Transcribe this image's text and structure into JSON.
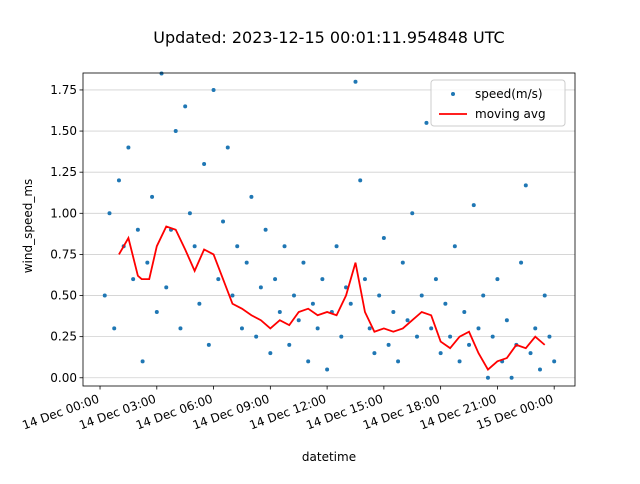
{
  "chart_data": {
    "type": "scatter",
    "title": "Updated: 2023-12-15 00:01:11.954848 UTC",
    "xlabel": "datetime",
    "ylabel": "wind_speed_ms",
    "xlim": [
      -0.9,
      25.1
    ],
    "ylim": [
      -0.05,
      1.853
    ],
    "xticks": [
      {
        "value": 0,
        "label": "14 Dec 00:00"
      },
      {
        "value": 3,
        "label": "14 Dec 03:00"
      },
      {
        "value": 6,
        "label": "14 Dec 06:00"
      },
      {
        "value": 9,
        "label": "14 Dec 09:00"
      },
      {
        "value": 12,
        "label": "14 Dec 12:00"
      },
      {
        "value": 15,
        "label": "14 Dec 15:00"
      },
      {
        "value": 18,
        "label": "14 Dec 18:00"
      },
      {
        "value": 21,
        "label": "14 Dec 21:00"
      },
      {
        "value": 24,
        "label": "15 Dec 00:00"
      }
    ],
    "yticks": [
      {
        "value": 0,
        "label": "0.00"
      },
      {
        "value": 0.25,
        "label": "0.25"
      },
      {
        "value": 0.5,
        "label": "0.50"
      },
      {
        "value": 0.75,
        "label": "0.75"
      },
      {
        "value": 1,
        "label": "1.00"
      },
      {
        "value": 1.25,
        "label": "1.25"
      },
      {
        "value": 1.5,
        "label": "1.50"
      },
      {
        "value": 1.75,
        "label": "1.75"
      }
    ],
    "grid": "y",
    "legend": "upper right",
    "series": [
      {
        "name": "speed(m/s)",
        "type": "scatter",
        "color": "#1f77b4",
        "x": [
          0.25,
          0.5,
          0.75,
          1,
          1.25,
          1.5,
          1.75,
          2,
          2.25,
          2.5,
          2.75,
          3,
          3.25,
          3.5,
          3.75,
          4,
          4.25,
          4.5,
          4.75,
          5,
          5.25,
          5.5,
          5.75,
          6,
          6.25,
          6.5,
          6.75,
          7,
          7.25,
          7.5,
          7.75,
          8,
          8.25,
          8.5,
          8.75,
          9,
          9.25,
          9.5,
          9.75,
          10,
          10.25,
          10.5,
          10.75,
          11,
          11.25,
          11.5,
          11.75,
          12,
          12.25,
          12.5,
          12.75,
          13,
          13.25,
          13.5,
          13.75,
          14,
          14.25,
          14.5,
          14.75,
          15,
          15.25,
          15.5,
          15.75,
          16,
          16.25,
          16.5,
          16.75,
          17,
          17.25,
          17.5,
          17.75,
          18,
          18.25,
          18.5,
          18.75,
          19,
          19.25,
          19.5,
          19.75,
          20,
          20.25,
          20.5,
          20.75,
          21,
          21.25,
          21.5,
          21.75,
          22,
          22.25,
          22.5,
          22.75,
          23,
          23.25,
          23.5,
          23.75,
          24
        ],
        "values": [
          0.5,
          1.0,
          0.3,
          1.2,
          0.8,
          1.4,
          0.6,
          0.9,
          0.1,
          0.7,
          1.1,
          0.4,
          1.85,
          0.55,
          0.9,
          1.5,
          0.3,
          1.65,
          1.0,
          0.8,
          0.45,
          1.3,
          0.2,
          1.75,
          0.6,
          0.95,
          1.4,
          0.5,
          0.8,
          0.3,
          0.7,
          1.1,
          0.25,
          0.55,
          0.9,
          0.15,
          0.6,
          0.4,
          0.8,
          0.2,
          0.5,
          0.35,
          0.7,
          0.1,
          0.45,
          0.3,
          0.6,
          0.05,
          0.4,
          0.8,
          0.25,
          0.55,
          0.45,
          1.8,
          1.2,
          0.6,
          0.3,
          0.15,
          0.5,
          0.85,
          0.2,
          0.4,
          0.1,
          0.7,
          0.35,
          1.0,
          0.25,
          0.5,
          1.55,
          0.3,
          0.6,
          0.15,
          0.45,
          0.25,
          0.8,
          0.1,
          0.4,
          0.2,
          1.05,
          0.3,
          0.5,
          0.0,
          0.25,
          0.6,
          0.1,
          0.35,
          0.0,
          0.2,
          0.7,
          1.17,
          0.15,
          0.3,
          0.05,
          0.5,
          0.25,
          0.1
        ]
      },
      {
        "name": "moving avg",
        "type": "line",
        "color": "#ff0000",
        "x": [
          1,
          1.5,
          2,
          2.2,
          2.6,
          3,
          3.5,
          4,
          4.5,
          5,
          5.5,
          6,
          6.5,
          7,
          7.5,
          8,
          8.5,
          9,
          9.5,
          10,
          10.5,
          11,
          11.5,
          12,
          12.5,
          13,
          13.5,
          14,
          14.5,
          15,
          15.5,
          16,
          16.5,
          17,
          17.5,
          18,
          18.5,
          19,
          19.5,
          20,
          20.5,
          21,
          21.5,
          22,
          22.5,
          23,
          23.5
        ],
        "values": [
          0.75,
          0.85,
          0.62,
          0.6,
          0.6,
          0.8,
          0.92,
          0.9,
          0.78,
          0.65,
          0.78,
          0.75,
          0.6,
          0.45,
          0.42,
          0.38,
          0.35,
          0.3,
          0.35,
          0.32,
          0.4,
          0.42,
          0.38,
          0.4,
          0.38,
          0.5,
          0.7,
          0.4,
          0.28,
          0.3,
          0.28,
          0.3,
          0.35,
          0.4,
          0.38,
          0.22,
          0.18,
          0.25,
          0.28,
          0.15,
          0.05,
          0.1,
          0.12,
          0.2,
          0.18,
          0.25,
          0.2
        ]
      }
    ]
  }
}
